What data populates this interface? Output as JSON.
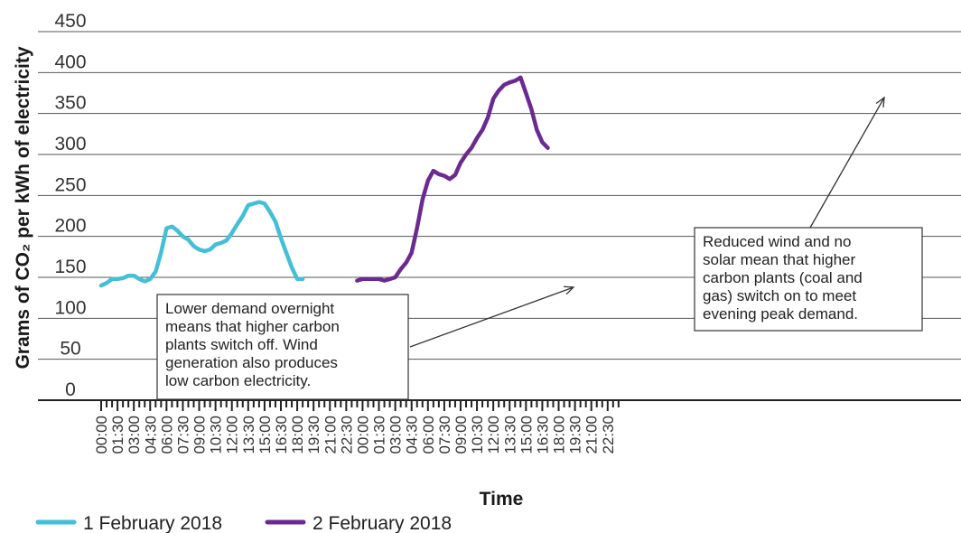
{
  "chart_data": {
    "type": "line",
    "xlabel": "Time",
    "ylabel": "Grams of CO₂ per kWh of electricity",
    "ylim": [
      0,
      450
    ],
    "yticks": [
      0,
      50,
      100,
      150,
      200,
      250,
      300,
      350,
      400,
      450
    ],
    "grid": "horizontal",
    "xtick_labels": [
      "00:00",
      "01:30",
      "03:00",
      "04:30",
      "06:00",
      "07:30",
      "09:00",
      "10:30",
      "12:00",
      "13:30",
      "15:00",
      "16:30",
      "18:00",
      "19:30",
      "21:00",
      "22:30",
      "00:00",
      "01:30",
      "03:00",
      "04:30",
      "06:00",
      "07:30",
      "09:00",
      "10:30",
      "12:00",
      "13:30",
      "15:00",
      "16:30",
      "18:00",
      "19:30",
      "21:00",
      "22:30"
    ],
    "series": [
      {
        "name": "1 February 2018",
        "color": "#45bfd6",
        "x": [
          0,
          1,
          2,
          3,
          4,
          5,
          6,
          7,
          8,
          9,
          10,
          11,
          12,
          13,
          14,
          15,
          16,
          17,
          18,
          19,
          20,
          21,
          22,
          23,
          24,
          25,
          26,
          27,
          28,
          29,
          30,
          31,
          32,
          33,
          34,
          35,
          36,
          37,
          38,
          39,
          40,
          41,
          42,
          43,
          44,
          45,
          46,
          47,
          48
        ],
        "values": [
          140,
          143,
          148,
          148,
          149,
          152,
          152,
          148,
          145,
          148,
          157,
          180,
          210,
          212,
          207,
          200,
          196,
          188,
          184,
          182,
          184,
          190,
          192,
          195,
          204,
          215,
          225,
          238,
          240,
          242,
          240,
          230,
          218,
          198,
          180,
          162,
          148,
          148,
          null,
          null,
          null,
          null,
          null,
          null,
          null,
          null,
          null,
          null,
          null
        ]
      },
      {
        "name": "2 February 2018",
        "color": "#6b2a90",
        "x": [
          47,
          48,
          49,
          50,
          51,
          52,
          53,
          54,
          55,
          56,
          57,
          58,
          59,
          60,
          61,
          62,
          63,
          64,
          65,
          66,
          67,
          68,
          69,
          70,
          71,
          72,
          73,
          74,
          75,
          76,
          77,
          78,
          79,
          80,
          81,
          82,
          83,
          84,
          85,
          86,
          87,
          88,
          89,
          90,
          91,
          92,
          93,
          94,
          95,
          96
        ],
        "values": [
          146,
          148,
          148,
          148,
          148,
          146,
          148,
          150,
          160,
          168,
          180,
          210,
          245,
          268,
          280,
          276,
          274,
          270,
          275,
          290,
          300,
          308,
          320,
          330,
          345,
          368,
          378,
          385,
          388,
          390,
          394,
          375,
          355,
          330,
          315,
          308,
          null,
          null,
          null,
          null,
          null,
          null,
          null,
          null,
          null,
          null,
          null,
          null,
          null,
          null
        ]
      }
    ],
    "annotations": [
      {
        "lines": [
          "Lower demand overnight",
          "means that higher carbon",
          "plants switch off. Wind",
          "generation also produces",
          "low carbon electricity."
        ]
      },
      {
        "lines": [
          "Reduced wind and no",
          "solar mean that higher",
          "carbon plants (coal and",
          "gas) switch on to meet",
          "evening peak demand."
        ]
      }
    ],
    "legend": {
      "placement": "bottom-left",
      "items": [
        {
          "label": "1 February 2018",
          "color": "#45bfd6"
        },
        {
          "label": "2 February 2018",
          "color": "#6b2a90"
        }
      ]
    }
  }
}
